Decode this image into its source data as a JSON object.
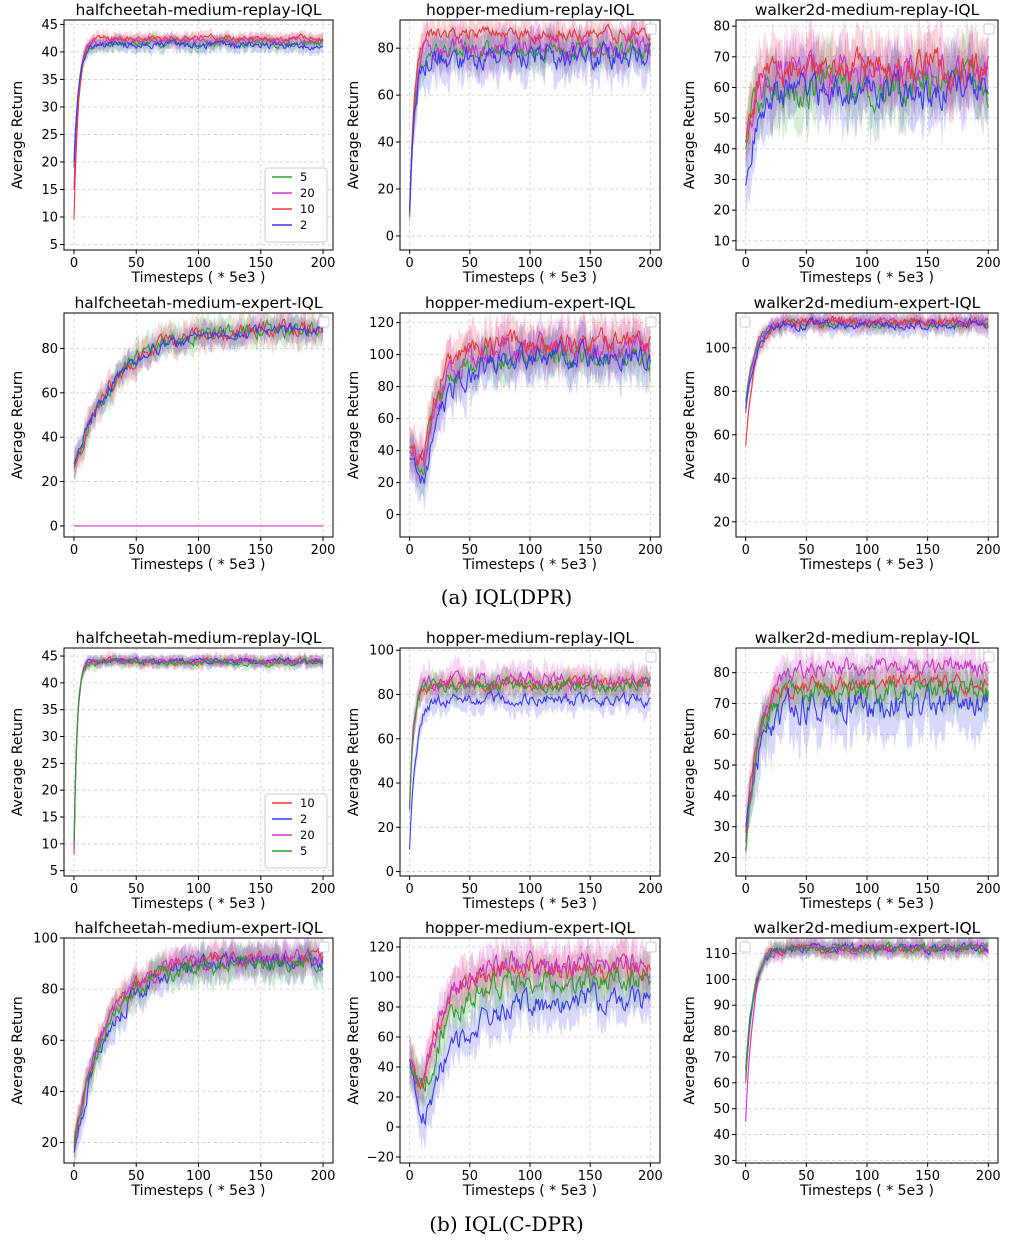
{
  "captions": {
    "a": "(a) IQL(DPR)",
    "b": "(b) IQL(C-DPR)"
  },
  "colors": {
    "5": "#2ca02c",
    "20": "#cc33cc",
    "10": "#e8383a",
    "2": "#3a3aee"
  },
  "chart_data": [
    {
      "type": "line",
      "title": "halfcheetah-medium-replay-IQL",
      "xlabel": "Timesteps ( * 5e3 )",
      "ylabel": "Average Return",
      "xlim": [
        -8,
        208
      ],
      "ylim": [
        4,
        45.8
      ],
      "xticks": [
        0,
        50,
        100,
        150,
        200
      ],
      "yticks": [
        5,
        10,
        15,
        20,
        25,
        30,
        35,
        40,
        45
      ],
      "grid": true,
      "legend": {
        "placement": "lower-right",
        "order": [
          "5",
          "20",
          "10",
          "2"
        ]
      },
      "series": [
        {
          "name": "5",
          "start": 19,
          "knee": 12,
          "plateau": 41.5,
          "rise": 0.28,
          "band": 1.2
        },
        {
          "name": "20",
          "start": 15,
          "knee": 12,
          "plateau": 42.0,
          "rise": 0.28,
          "band": 1.0
        },
        {
          "name": "10",
          "start": 9.5,
          "knee": 12,
          "plateau": 42.5,
          "rise": 0.28,
          "band": 1.0
        },
        {
          "name": "2",
          "start": 20,
          "knee": 12,
          "plateau": 41.2,
          "rise": 0.28,
          "band": 1.2
        }
      ]
    },
    {
      "type": "line",
      "title": "hopper-medium-replay-IQL",
      "xlabel": "Timesteps ( * 5e3 )",
      "ylabel": "Average Return",
      "xlim": [
        -8,
        208
      ],
      "ylim": [
        -6,
        92
      ],
      "xticks": [
        0,
        50,
        100,
        150,
        200
      ],
      "yticks": [
        0,
        20,
        40,
        60,
        80
      ],
      "grid": true,
      "legend": {
        "placement": "upper-right",
        "order": []
      },
      "series": [
        {
          "name": "5",
          "start": 8,
          "knee": 20,
          "plateau": 79,
          "rise": 0.25,
          "band": 7
        },
        {
          "name": "20",
          "start": 12,
          "knee": 20,
          "plateau": 80,
          "rise": 0.25,
          "band": 8
        },
        {
          "name": "10",
          "start": 10,
          "knee": 18,
          "plateau": 86,
          "rise": 0.25,
          "band": 5
        },
        {
          "name": "2",
          "start": 10,
          "knee": 25,
          "plateau": 76,
          "rise": 0.25,
          "band": 9
        }
      ]
    },
    {
      "type": "line",
      "title": "walker2d-medium-replay-IQL",
      "xlabel": "Timesteps ( * 5e3 )",
      "ylabel": "Average Return",
      "xlim": [
        -8,
        208
      ],
      "ylim": [
        7,
        82
      ],
      "xticks": [
        0,
        50,
        100,
        150,
        200
      ],
      "yticks": [
        10,
        20,
        30,
        40,
        50,
        60,
        70,
        80
      ],
      "grid": true,
      "legend": {
        "placement": "upper-right",
        "order": []
      },
      "series": [
        {
          "name": "5",
          "start": 40,
          "knee": 40,
          "plateau": 60,
          "rise": 0.12,
          "band": 10
        },
        {
          "name": "20",
          "start": 42,
          "knee": 40,
          "plateau": 65,
          "rise": 0.12,
          "band": 10
        },
        {
          "name": "10",
          "start": 42,
          "knee": 35,
          "plateau": 66,
          "rise": 0.12,
          "band": 9
        },
        {
          "name": "2",
          "start": 28,
          "knee": 50,
          "plateau": 59,
          "rise": 0.12,
          "band": 9
        }
      ]
    },
    {
      "type": "line",
      "title": "halfcheetah-medium-expert-IQL",
      "xlabel": "Timesteps ( * 5e3 )",
      "ylabel": "Average Return",
      "xlim": [
        -8,
        208
      ],
      "ylim": [
        -5,
        96
      ],
      "xticks": [
        0,
        50,
        100,
        150,
        200
      ],
      "yticks": [
        0,
        20,
        40,
        60,
        80
      ],
      "grid": true,
      "legend": {
        "placement": "upper-right",
        "order": []
      },
      "series": [
        {
          "name": "5",
          "start": 26,
          "knee": 120,
          "plateau": 89,
          "rise": 0.03,
          "band": 6
        },
        {
          "name": "10",
          "start": 26,
          "knee": 120,
          "plateau": 89,
          "rise": 0.03,
          "band": 6
        },
        {
          "name": "2",
          "start": 28,
          "knee": 120,
          "plateau": 88,
          "rise": 0.03,
          "band": 5
        },
        {
          "name": "20",
          "constant": 0,
          "band": 0
        }
      ]
    },
    {
      "type": "line",
      "title": "hopper-medium-expert-IQL",
      "xlabel": "Timesteps ( * 5e3 )",
      "ylabel": "Average Return",
      "xlim": [
        -8,
        208
      ],
      "ylim": [
        -14,
        126
      ],
      "xticks": [
        0,
        50,
        100,
        150,
        200
      ],
      "yticks": [
        0,
        20,
        40,
        60,
        80,
        100,
        120
      ],
      "grid": true,
      "legend": {
        "placement": "upper-right",
        "order": []
      },
      "series": [
        {
          "name": "5",
          "start": 40,
          "dip": 30,
          "knee": 60,
          "plateau": 97,
          "rise": 0.07,
          "band": 12
        },
        {
          "name": "20",
          "start": 40,
          "dip": 30,
          "knee": 60,
          "plateau": 104,
          "rise": 0.07,
          "band": 14
        },
        {
          "name": "10",
          "start": 42,
          "dip": 32,
          "knee": 50,
          "plateau": 108,
          "rise": 0.08,
          "band": 12
        },
        {
          "name": "2",
          "start": 35,
          "dip": 22,
          "knee": 80,
          "plateau": 99,
          "rise": 0.05,
          "band": 13
        }
      ]
    },
    {
      "type": "line",
      "title": "walker2d-medium-expert-IQL",
      "xlabel": "Timesteps ( * 5e3 )",
      "ylabel": "Average Return",
      "xlim": [
        -8,
        208
      ],
      "ylim": [
        13,
        116
      ],
      "xticks": [
        0,
        50,
        100,
        150,
        200
      ],
      "yticks": [
        20,
        40,
        60,
        80,
        100
      ],
      "grid": true,
      "legend": {
        "placement": "upper-left",
        "order": []
      },
      "series": [
        {
          "name": "5",
          "start": 75,
          "knee": 25,
          "plateau": 111,
          "rise": 0.14,
          "band": 3
        },
        {
          "name": "20",
          "start": 70,
          "knee": 25,
          "plateau": 112,
          "rise": 0.14,
          "band": 3
        },
        {
          "name": "10",
          "start": 55,
          "knee": 25,
          "plateau": 112,
          "rise": 0.14,
          "band": 4
        },
        {
          "name": "2",
          "start": 72,
          "knee": 30,
          "plateau": 111,
          "rise": 0.12,
          "band": 4
        }
      ]
    },
    {
      "type": "line",
      "title": "halfcheetah-medium-replay-IQL",
      "xlabel": "Timesteps ( * 5e3 )",
      "ylabel": "Average Return",
      "xlim": [
        -8,
        208
      ],
      "ylim": [
        4,
        46.5
      ],
      "xticks": [
        0,
        50,
        100,
        150,
        200
      ],
      "yticks": [
        5,
        10,
        15,
        20,
        25,
        30,
        35,
        40,
        45
      ],
      "grid": true,
      "legend": {
        "placement": "lower-right",
        "order": [
          "10",
          "2",
          "20",
          "5"
        ]
      },
      "series": [
        {
          "name": "10",
          "start": 8,
          "knee": 10,
          "plateau": 44,
          "rise": 0.4,
          "band": 1.0
        },
        {
          "name": "2",
          "start": 9,
          "knee": 10,
          "plateau": 44,
          "rise": 0.4,
          "band": 1.0
        },
        {
          "name": "20",
          "start": 8,
          "knee": 10,
          "plateau": 44,
          "rise": 0.4,
          "band": 0.8
        },
        {
          "name": "5",
          "start": 10,
          "knee": 10,
          "plateau": 43.8,
          "rise": 0.4,
          "band": 1.0
        }
      ]
    },
    {
      "type": "line",
      "title": "hopper-medium-replay-IQL",
      "xlabel": "Timesteps ( * 5e3 )",
      "ylabel": "Average Return",
      "xlim": [
        -8,
        208
      ],
      "ylim": [
        -2,
        101
      ],
      "xticks": [
        0,
        50,
        100,
        150,
        200
      ],
      "yticks": [
        0,
        20,
        40,
        60,
        80,
        100
      ],
      "grid": true,
      "legend": {
        "placement": "upper-right",
        "order": []
      },
      "series": [
        {
          "name": "10",
          "start": 28,
          "knee": 12,
          "plateau": 85,
          "rise": 0.3,
          "band": 5
        },
        {
          "name": "2",
          "start": 10,
          "knee": 22,
          "plateau": 78,
          "rise": 0.2,
          "band": 5
        },
        {
          "name": "20",
          "start": 30,
          "knee": 12,
          "plateau": 86,
          "rise": 0.3,
          "band": 6
        },
        {
          "name": "5",
          "start": 28,
          "knee": 14,
          "plateau": 84,
          "rise": 0.3,
          "band": 5
        }
      ]
    },
    {
      "type": "line",
      "title": "walker2d-medium-replay-IQL",
      "xlabel": "Timesteps ( * 5e3 )",
      "ylabel": "Average Return",
      "xlim": [
        -8,
        208
      ],
      "ylim": [
        14,
        88
      ],
      "xticks": [
        0,
        50,
        100,
        150,
        200
      ],
      "yticks": [
        20,
        30,
        40,
        50,
        60,
        70,
        80
      ],
      "grid": true,
      "legend": {
        "placement": "upper-right",
        "order": []
      },
      "series": [
        {
          "name": "10",
          "start": 28,
          "knee": 30,
          "plateau": 76,
          "rise": 0.1,
          "band": 5
        },
        {
          "name": "2",
          "start": 30,
          "knee": 40,
          "plateau": 70,
          "rise": 0.08,
          "band": 9
        },
        {
          "name": "20",
          "start": 25,
          "knee": 30,
          "plateau": 82,
          "rise": 0.08,
          "band": 5
        },
        {
          "name": "5",
          "start": 22,
          "knee": 30,
          "plateau": 74,
          "rise": 0.1,
          "band": 6
        }
      ]
    },
    {
      "type": "line",
      "title": "halfcheetah-medium-expert-IQL",
      "xlabel": "Timesteps ( * 5e3 )",
      "ylabel": "Average Return",
      "xlim": [
        -8,
        208
      ],
      "ylim": [
        12,
        100
      ],
      "xticks": [
        0,
        50,
        100,
        150,
        200
      ],
      "yticks": [
        20,
        40,
        60,
        80,
        100
      ],
      "grid": true,
      "legend": {
        "placement": "upper-right",
        "order": []
      },
      "series": [
        {
          "name": "10",
          "start": 20,
          "knee": 60,
          "plateau": 92,
          "rise": 0.04,
          "band": 5
        },
        {
          "name": "2",
          "start": 16,
          "knee": 70,
          "plateau": 91,
          "rise": 0.035,
          "band": 6
        },
        {
          "name": "20",
          "start": 18,
          "knee": 60,
          "plateau": 92,
          "rise": 0.04,
          "band": 5
        },
        {
          "name": "5",
          "start": 18,
          "knee": 65,
          "plateau": 90,
          "rise": 0.04,
          "band": 6
        }
      ]
    },
    {
      "type": "line",
      "title": "hopper-medium-expert-IQL",
      "xlabel": "Timesteps ( * 5e3 )",
      "ylabel": "Average Return",
      "xlim": [
        -8,
        208
      ],
      "ylim": [
        -24,
        126
      ],
      "xticks": [
        0,
        50,
        100,
        150,
        200
      ],
      "yticks": [
        -20,
        0,
        20,
        40,
        60,
        80,
        100,
        120
      ],
      "grid": true,
      "legend": {
        "placement": "upper-right",
        "order": []
      },
      "series": [
        {
          "name": "10",
          "start": 45,
          "dip": 30,
          "knee": 60,
          "plateau": 105,
          "rise": 0.06,
          "band": 12
        },
        {
          "name": "2",
          "start": 45,
          "dip": 5,
          "knee": 90,
          "plateau": 85,
          "rise": 0.035,
          "band": 14
        },
        {
          "name": "20",
          "start": 45,
          "dip": 25,
          "knee": 60,
          "plateau": 108,
          "rise": 0.06,
          "band": 14
        },
        {
          "name": "5",
          "start": 40,
          "dip": 20,
          "knee": 70,
          "plateau": 98,
          "rise": 0.05,
          "band": 14
        }
      ]
    },
    {
      "type": "line",
      "title": "walker2d-medium-expert-IQL",
      "xlabel": "Timesteps ( * 5e3 )",
      "ylabel": "Average Return",
      "xlim": [
        -8,
        208
      ],
      "ylim": [
        29,
        116
      ],
      "xticks": [
        0,
        50,
        100,
        150,
        200
      ],
      "yticks": [
        30,
        40,
        50,
        60,
        70,
        80,
        90,
        100,
        110
      ],
      "grid": true,
      "legend": {
        "placement": "upper-left",
        "order": []
      },
      "series": [
        {
          "name": "10",
          "start": 60,
          "knee": 25,
          "plateau": 112,
          "rise": 0.16,
          "band": 3
        },
        {
          "name": "2",
          "start": 65,
          "knee": 25,
          "plateau": 112,
          "rise": 0.15,
          "band": 3
        },
        {
          "name": "20",
          "start": 45,
          "knee": 25,
          "plateau": 112,
          "rise": 0.16,
          "band": 3
        },
        {
          "name": "5",
          "start": 62,
          "knee": 25,
          "plateau": 112,
          "rise": 0.16,
          "band": 3
        }
      ]
    }
  ]
}
